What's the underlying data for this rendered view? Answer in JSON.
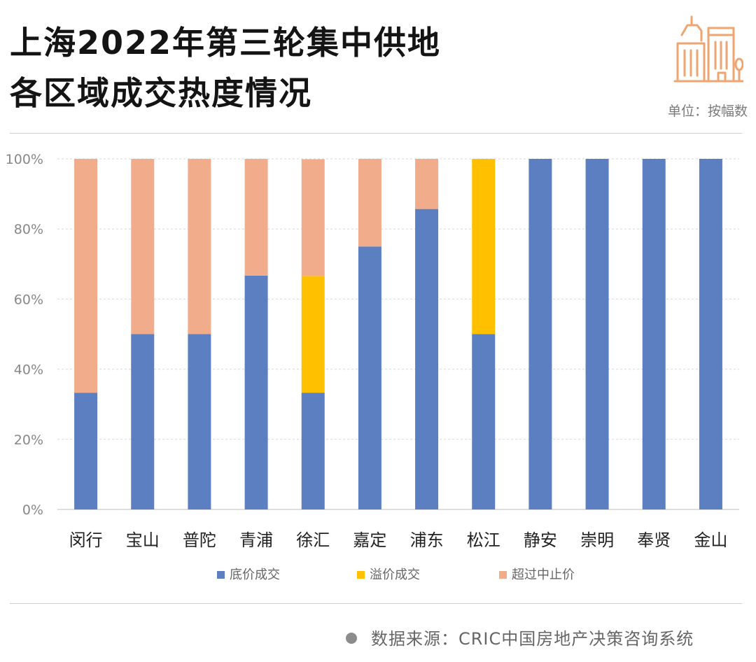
{
  "header": {
    "title_line1": "上海2022年第三轮集中供地",
    "title_line2": "各区域成交热度情况",
    "unit_label": "单位：按幅数"
  },
  "logo": {
    "icon": "city-buildings-icon",
    "color": "#F0A570"
  },
  "footer": {
    "source": "数据来源：CRIC中国房地产决策咨询系统"
  },
  "chart_data": {
    "type": "bar",
    "stacked": true,
    "title": "上海2022年第三轮集中供地各区域成交热度情况",
    "xlabel": "",
    "ylabel": "",
    "ylim": [
      0,
      100
    ],
    "y_ticks": [
      "0%",
      "20%",
      "40%",
      "60%",
      "80%",
      "100%"
    ],
    "y_tick_values": [
      0,
      20,
      40,
      60,
      80,
      100
    ],
    "grid": true,
    "legend_position": "bottom",
    "categories": [
      "闵行",
      "宝山",
      "普陀",
      "青浦",
      "徐汇",
      "嘉定",
      "浦东",
      "松江",
      "静安",
      "崇明",
      "奉贤",
      "金山"
    ],
    "series": [
      {
        "name": "底价成交",
        "color": "#5B7FC0",
        "values": [
          33.3,
          50,
          50,
          66.7,
          33.3,
          75,
          85.7,
          50,
          100,
          100,
          100,
          100
        ]
      },
      {
        "name": "溢价成交",
        "color": "#FFC000",
        "values": [
          0,
          0,
          0,
          0,
          33.3,
          0,
          0,
          50,
          0,
          0,
          0,
          0
        ]
      },
      {
        "name": "超过中止价",
        "color": "#F1AC8C",
        "values": [
          66.7,
          50,
          50,
          33.3,
          33.3,
          25,
          14.3,
          0,
          0,
          0,
          0,
          0
        ]
      }
    ]
  }
}
